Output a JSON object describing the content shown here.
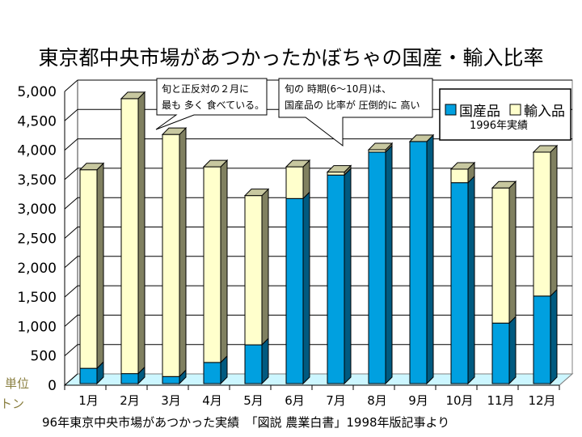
{
  "title": "東京都中央市場があつかったかぼちゃの国産・輸入比率",
  "unit_label_1": "単位",
  "unit_label_2": "トン",
  "footer": "96年東京中央市場があつかった実績　「図説 農業白書」1998年版記事より",
  "colors": {
    "domestic": "#00a0e0",
    "domestic_side": "#005a80",
    "imported": "#ffffcc",
    "imported_side": "#808060",
    "top_face": "#c8c8a0",
    "floor": "#ccf6ff"
  },
  "callouts": [
    {
      "lines": [
        "旬と正反対の２月に",
        "最も 多く 食べている。"
      ]
    },
    {
      "lines": [
        "旬の 時期(6～10月)は、",
        "国産品の 比率が 圧倒的に 高い"
      ]
    }
  ],
  "legend": {
    "items": [
      "国産品",
      "輸入品"
    ],
    "subtitle": "1996年実績"
  },
  "chart_data": {
    "type": "bar",
    "stacked": true,
    "three_d": true,
    "title": "東京都中央市場があつかったかぼちゃの国産・輸入比率",
    "xlabel": "",
    "ylabel": "単位 トン",
    "categories": [
      "1月",
      "2月",
      "3月",
      "4月",
      "5月",
      "6月",
      "7月",
      "8月",
      "9月",
      "10月",
      "11月",
      "12月"
    ],
    "series": [
      {
        "name": "国産品",
        "values": [
          260,
          170,
          120,
          360,
          660,
          3150,
          3550,
          3940,
          4120,
          3420,
          1030,
          1490
        ]
      },
      {
        "name": "輸入品",
        "values": [
          3380,
          4680,
          4120,
          3330,
          2540,
          540,
          50,
          40,
          0,
          230,
          2300,
          2450
        ]
      }
    ],
    "ylim": [
      0,
      5000
    ],
    "yticks": [
      0,
      500,
      1000,
      1500,
      2000,
      2500,
      3000,
      3500,
      4000,
      4500,
      5000
    ],
    "ytick_labels": [
      "0",
      "500",
      "1,000",
      "1,500",
      "2,000",
      "2,500",
      "3,000",
      "3,500",
      "4,000",
      "4,500",
      "5,000"
    ],
    "grid": true,
    "legend_position": "top-right"
  }
}
